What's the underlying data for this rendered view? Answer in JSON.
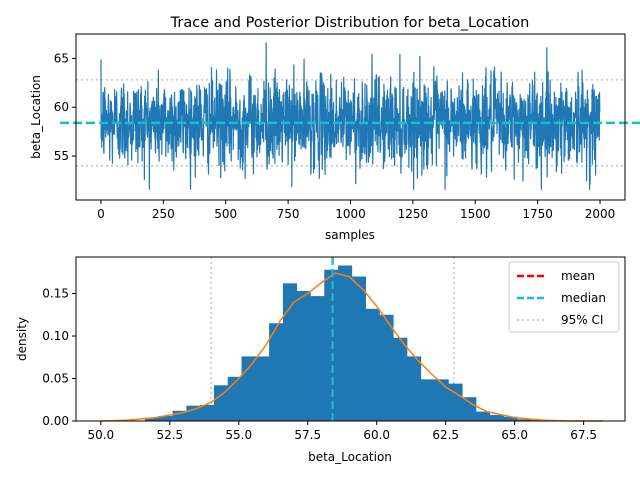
{
  "chart_data": [
    {
      "type": "line",
      "title": "Trace and Posterior Distribution for beta_Location",
      "xlabel": "samples",
      "ylabel": "beta_Location",
      "xlim": [
        -100,
        2100
      ],
      "ylim": [
        50.5,
        67.5
      ],
      "xticks": [
        0,
        250,
        500,
        750,
        1000,
        1250,
        1500,
        1750,
        2000
      ],
      "yticks": [
        55,
        60,
        65
      ],
      "n_samples": 2000,
      "trace_mean": 58.5,
      "trace_sd": 2.3,
      "trace_min": 51.6,
      "trace_max": 66.6,
      "reference_lines": [
        {
          "label": "median",
          "value": 58.4,
          "style": "dashed",
          "color": "#17becf"
        },
        {
          "label": "95% CI lower",
          "value": 54.0,
          "style": "dotted",
          "color": "#bbbbbb"
        },
        {
          "label": "95% CI upper",
          "value": 62.8,
          "style": "dotted",
          "color": "#bbbbbb"
        }
      ],
      "series_color": "#1f77b4"
    },
    {
      "type": "bar",
      "xlabel": "beta_Location",
      "ylabel": "density",
      "xlim": [
        49.1,
        69.0
      ],
      "ylim": [
        0,
        0.193
      ],
      "xticks": [
        50.0,
        52.5,
        55.0,
        57.5,
        60.0,
        62.5,
        65.0,
        67.5
      ],
      "xtick_labels": [
        "50.0",
        "52.5",
        "55.0",
        "57.5",
        "60.0",
        "62.5",
        "65.0",
        "67.5"
      ],
      "yticks": [
        0.0,
        0.05,
        0.1,
        0.15
      ],
      "ytick_labels": [
        "0.00",
        "0.05",
        "0.10",
        "0.15"
      ],
      "bins": [
        {
          "x0": 51.6,
          "x1": 52.1,
          "density": 0.004
        },
        {
          "x0": 52.1,
          "x1": 52.6,
          "density": 0.006
        },
        {
          "x0": 52.6,
          "x1": 53.1,
          "density": 0.012
        },
        {
          "x0": 53.1,
          "x1": 53.6,
          "density": 0.018
        },
        {
          "x0": 53.6,
          "x1": 54.1,
          "density": 0.019
        },
        {
          "x0": 54.1,
          "x1": 54.6,
          "density": 0.042
        },
        {
          "x0": 54.6,
          "x1": 55.1,
          "density": 0.052
        },
        {
          "x0": 55.1,
          "x1": 55.6,
          "density": 0.076
        },
        {
          "x0": 55.6,
          "x1": 56.1,
          "density": 0.076
        },
        {
          "x0": 56.1,
          "x1": 56.6,
          "density": 0.115
        },
        {
          "x0": 56.6,
          "x1": 57.1,
          "density": 0.162
        },
        {
          "x0": 57.1,
          "x1": 57.6,
          "density": 0.153
        },
        {
          "x0": 57.6,
          "x1": 58.1,
          "density": 0.147
        },
        {
          "x0": 58.1,
          "x1": 58.6,
          "density": 0.178
        },
        {
          "x0": 58.6,
          "x1": 59.1,
          "density": 0.183
        },
        {
          "x0": 59.1,
          "x1": 59.6,
          "density": 0.17
        },
        {
          "x0": 59.6,
          "x1": 60.1,
          "density": 0.132
        },
        {
          "x0": 60.1,
          "x1": 60.6,
          "density": 0.125
        },
        {
          "x0": 60.6,
          "x1": 61.1,
          "density": 0.098
        },
        {
          "x0": 61.1,
          "x1": 61.6,
          "density": 0.076
        },
        {
          "x0": 61.6,
          "x1": 62.1,
          "density": 0.049
        },
        {
          "x0": 62.1,
          "x1": 62.6,
          "density": 0.049
        },
        {
          "x0": 62.6,
          "x1": 63.1,
          "density": 0.044
        },
        {
          "x0": 63.1,
          "x1": 63.6,
          "density": 0.028
        },
        {
          "x0": 63.6,
          "x1": 64.1,
          "density": 0.011
        },
        {
          "x0": 64.1,
          "x1": 64.6,
          "density": 0.007
        },
        {
          "x0": 64.6,
          "x1": 65.1,
          "density": 0.005
        },
        {
          "x0": 65.1,
          "x1": 65.6,
          "density": 0.002
        },
        {
          "x0": 65.6,
          "x1": 66.1,
          "density": 0.001
        },
        {
          "x0": 66.1,
          "x1": 66.6,
          "density": 0.001
        }
      ],
      "kde": {
        "x": [
          50.0,
          51.0,
          52.0,
          53.0,
          53.5,
          54.0,
          54.5,
          55.0,
          55.5,
          56.0,
          56.5,
          57.0,
          57.5,
          58.0,
          58.5,
          59.0,
          59.5,
          60.0,
          60.5,
          61.0,
          61.5,
          62.0,
          62.5,
          63.0,
          63.5,
          64.0,
          65.0,
          66.0,
          67.0,
          68.2
        ],
        "y": [
          0.0,
          0.001,
          0.004,
          0.01,
          0.015,
          0.022,
          0.034,
          0.05,
          0.068,
          0.09,
          0.118,
          0.14,
          0.15,
          0.163,
          0.174,
          0.17,
          0.155,
          0.135,
          0.112,
          0.09,
          0.071,
          0.055,
          0.04,
          0.03,
          0.019,
          0.011,
          0.004,
          0.001,
          0.0,
          0.0
        ],
        "color": "#ff7f0e"
      },
      "vlines": [
        {
          "name": "mean",
          "value": 58.4,
          "color": "#ff0000",
          "style": "dashed"
        },
        {
          "name": "median",
          "value": 58.4,
          "color": "#17becf",
          "style": "dashed"
        },
        {
          "name": "95% CI",
          "value": 54.0,
          "color": "#bbbbbb",
          "style": "dotted"
        },
        {
          "name": "95% CI",
          "value": 62.8,
          "color": "#bbbbbb",
          "style": "dotted"
        }
      ],
      "legend": {
        "placement": "top-right",
        "entries": [
          {
            "label": "mean",
            "color": "#ff0000",
            "style": "dashed"
          },
          {
            "label": "median",
            "color": "#17becf",
            "style": "dashed"
          },
          {
            "label": "95% CI",
            "color": "#bbbbbb",
            "style": "dotted"
          }
        ]
      },
      "bar_color": "#1f77b4"
    }
  ]
}
